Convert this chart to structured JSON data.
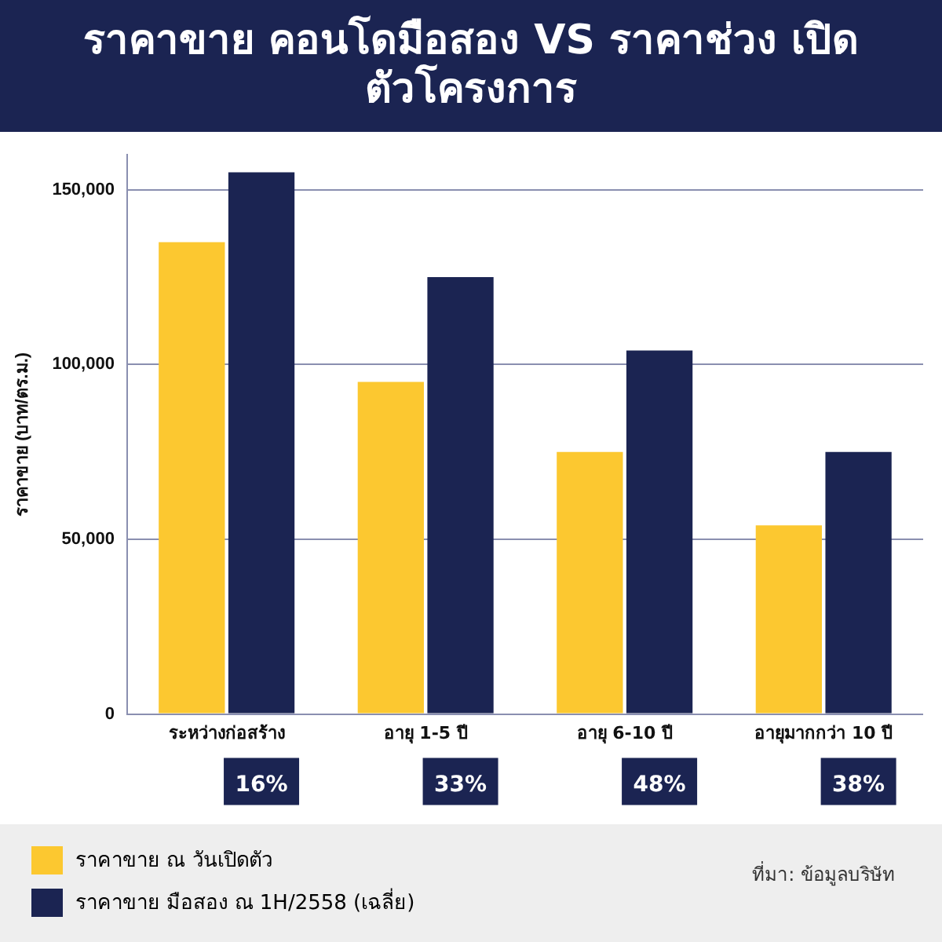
{
  "chart_data": {
    "type": "bar",
    "title": "ราคาขาย คอนโดมือสอง VS ราคาช่วง เปิดตัวโครงการ",
    "ylabel": "ราคาขาย (บาท/ตร.ม.)",
    "categories": [
      "ระหว่างก่อสร้าง",
      "อายุ 1-5 ปี",
      "อายุ 6-10 ปี",
      "อายุมากกว่า 10 ปี"
    ],
    "series": [
      {
        "name": "ราคาขาย ณ วันเปิดตัว",
        "color": "#fcc830",
        "values": [
          135000,
          95000,
          75000,
          54000
        ]
      },
      {
        "name": "ราคาขาย มือสอง ณ 1H/2558 (เฉลี่ย)",
        "color": "#1b2452",
        "values": [
          155000,
          125000,
          104000,
          75000
        ]
      }
    ],
    "ylim": [
      0,
      160000
    ],
    "yticks": [
      {
        "value": 0,
        "label": "0"
      },
      {
        "value": 50000,
        "label": "50,000"
      },
      {
        "value": 100000,
        "label": "100,000"
      },
      {
        "value": 150000,
        "label": "150,000"
      }
    ],
    "grid": "y",
    "legend": "bottom",
    "annotations": [
      "16%",
      "33%",
      "48%",
      "38%",
      "ที่มา: ข้อมูลบริษัท"
    ]
  }
}
